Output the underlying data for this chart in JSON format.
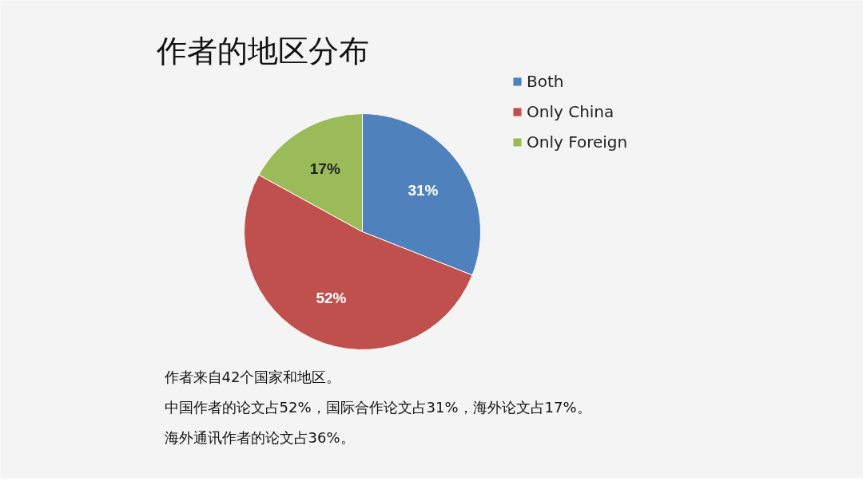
{
  "chart_data": {
    "type": "pie",
    "title": "作者的地区分布",
    "categories": [
      "Both",
      "Only China",
      "Only Foreign"
    ],
    "values": [
      31,
      52,
      17
    ],
    "colors": [
      "#4f81bd",
      "#c0504d",
      "#9bbb59"
    ],
    "value_labels": [
      "31%",
      "52%",
      "17%"
    ],
    "legend": "top right",
    "annotations": [
      "作者来自42个国家和地区。",
      "中国作者的论文占52%，国际合作论文占31%，海外论文占17%。",
      "海外通讯作者的论文占36%。"
    ]
  }
}
